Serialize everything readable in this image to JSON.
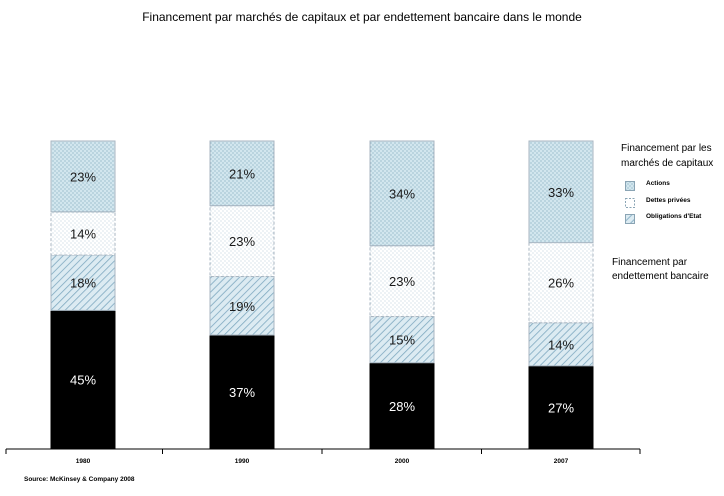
{
  "chart_data": {
    "type": "bar",
    "stacked": true,
    "title": "Financement par marchés de capitaux et par endettement bancaire dans le monde",
    "categories": [
      "1980",
      "1990",
      "2000",
      "2007"
    ],
    "series": [
      {
        "name": "Actions",
        "values": [
          23,
          21,
          34,
          33
        ],
        "labels": [
          "23%",
          "21%",
          "34%",
          "33%"
        ],
        "fill": "#cfe3ec",
        "pattern": "dots"
      },
      {
        "name": "Dettes privées",
        "values": [
          14,
          23,
          23,
          26
        ],
        "labels": [
          "14%",
          "23%",
          "23%",
          "26%"
        ],
        "fill": "#ffffff",
        "pattern": "dots-light"
      },
      {
        "name": "Obligations d'Etat",
        "values": [
          18,
          19,
          15,
          14
        ],
        "labels": [
          "18%",
          "19%",
          "15%",
          "14%"
        ],
        "fill": "#d6e8f0",
        "pattern": "diagonal"
      },
      {
        "name": "",
        "values": [
          45,
          37,
          28,
          27
        ],
        "labels": [
          "45%",
          "37%",
          "28%",
          "27%"
        ],
        "fill": "#000000",
        "pattern": "solid"
      }
    ],
    "ylim": [
      0,
      100
    ],
    "grid": false,
    "legend_placement": "right"
  },
  "legend": {
    "group_title": "Financement par les marchés de capitaux",
    "bank_label": "Financement par endettement bancaire",
    "items": [
      "Actions",
      "Dettes privées",
      "Obligations d'Etat"
    ]
  },
  "source": "Source: McKinsey & Company 2008",
  "colors": {
    "border": "#a8b6c2",
    "pattern_blue": "#8fb4c8",
    "bank": "#000000"
  }
}
